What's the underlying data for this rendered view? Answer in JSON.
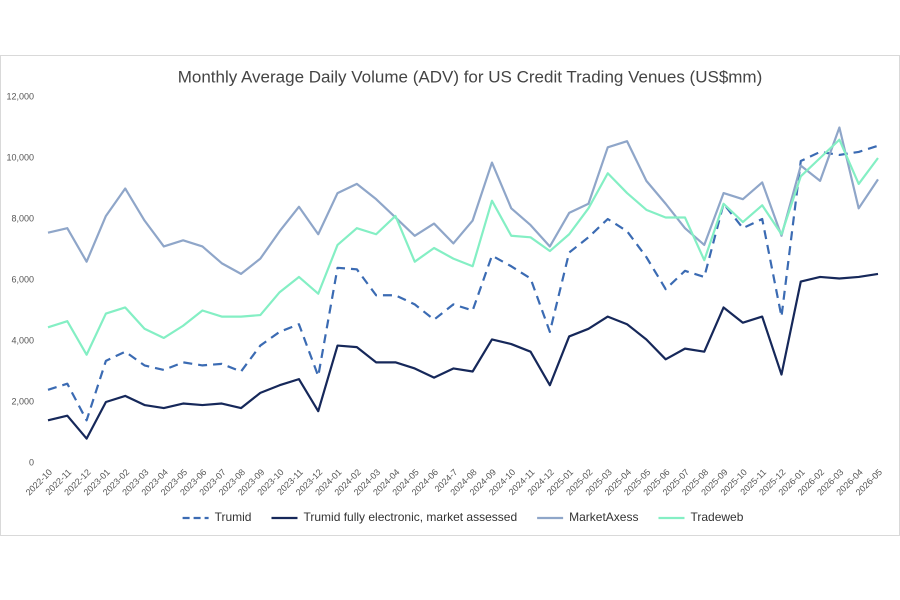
{
  "chart_data": {
    "type": "line",
    "title": "Monthly Average Daily Volume (ADV) for US Credit Trading Venues (US$mm)",
    "categories": [
      "2022-10",
      "2022-11",
      "2022-12",
      "2023-01",
      "2023-02",
      "2023-03",
      "2023-04",
      "2023-05",
      "2023-06",
      "2023-07",
      "2023-08",
      "2023-09",
      "2023-10",
      "2023-11",
      "2023-12",
      "2024-01",
      "2024-02",
      "2024-03",
      "2024-04",
      "2024-05",
      "2024-06",
      "2024-7",
      "2024-08",
      "2024-09",
      "2024-10",
      "2024-11",
      "2024-12",
      "2025-01",
      "2025-02",
      "2025-03",
      "2025-04",
      "2025-05",
      "2025-06",
      "2025-07",
      "2025-08",
      "2025-09",
      "2025-10",
      "2025-11",
      "2025-12",
      "2026-01",
      "2026-02",
      "2026-03",
      "2026-04",
      "2026-05"
    ],
    "series": [
      {
        "name": "Trumid",
        "color": "#3b6bb3",
        "style": "dashed",
        "values": [
          2400,
          2600,
          1400,
          3350,
          3650,
          3200,
          3050,
          3300,
          3200,
          3250,
          3000,
          3850,
          4300,
          4550,
          2850,
          6400,
          6350,
          5500,
          5500,
          5200,
          4700,
          5200,
          5000,
          6800,
          6450,
          6050,
          4300,
          6900,
          7400,
          8000,
          7600,
          6750,
          5700,
          6300,
          6100,
          8500,
          7700,
          8000,
          4800,
          9900,
          10200,
          10100,
          10200,
          10400
        ]
      },
      {
        "name": "Trumid fully electronic, market assessed",
        "color": "#16285a",
        "style": "solid",
        "values": [
          1400,
          1550,
          800,
          2000,
          2200,
          1900,
          1800,
          1950,
          1900,
          1950,
          1800,
          2300,
          2550,
          2750,
          1700,
          3850,
          3800,
          3300,
          3300,
          3100,
          2800,
          3100,
          3000,
          4050,
          3900,
          3650,
          2550,
          4150,
          4400,
          4800,
          4550,
          4050,
          3400,
          3750,
          3650,
          5100,
          4600,
          4800,
          2900,
          5950,
          6100,
          6050,
          6100,
          6200
        ]
      },
      {
        "name": "MarketAxess",
        "color": "#8fa6c9",
        "style": "solid",
        "values": [
          7550,
          7700,
          6600,
          8100,
          9000,
          7950,
          7100,
          7300,
          7100,
          6550,
          6200,
          6700,
          7600,
          8400,
          7500,
          8850,
          9150,
          8650,
          8050,
          7450,
          7850,
          7200,
          7950,
          9850,
          8350,
          7800,
          7100,
          8200,
          8500,
          10350,
          10550,
          9250,
          8500,
          7700,
          7150,
          8850,
          8650,
          9200,
          7450,
          9750,
          9250,
          11000,
          8350,
          9300
        ]
      },
      {
        "name": "Tradeweb",
        "color": "#84efc4",
        "style": "solid",
        "values": [
          4450,
          4650,
          3550,
          4900,
          5100,
          4400,
          4100,
          4500,
          5000,
          4800,
          4800,
          4850,
          5600,
          6100,
          5550,
          7150,
          7700,
          7500,
          8100,
          6600,
          7050,
          6700,
          6450,
          8600,
          7450,
          7400,
          6950,
          7500,
          8350,
          9500,
          8850,
          8300,
          8050,
          8050,
          6650,
          8500,
          7900,
          8450,
          7500,
          9400,
          10000,
          10600,
          9150,
          10000
        ]
      }
    ],
    "ylim": [
      0,
      12000
    ],
    "yticks": [
      0,
      {
        "value": 2000,
        "label": "2,000"
      },
      {
        "value": 4000,
        "label": "4,000"
      },
      {
        "value": 6000,
        "label": "6,000"
      },
      {
        "value": 8000,
        "label": "8,000"
      },
      {
        "value": 10000,
        "label": "10,000"
      },
      {
        "value": 12000,
        "label": "12,000"
      }
    ],
    "grid": false,
    "legend": "bottom"
  }
}
